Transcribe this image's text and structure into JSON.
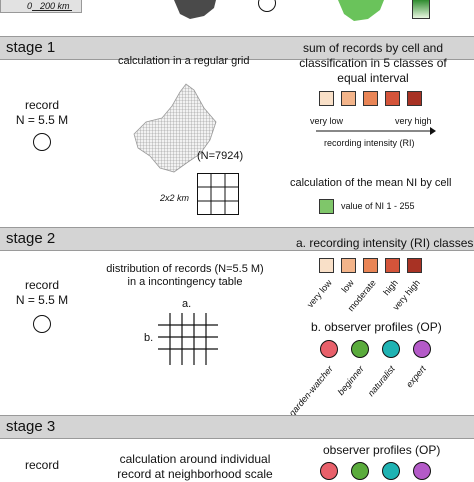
{
  "top": {
    "scale_zero": "0",
    "scale_label": "200 km"
  },
  "stage1": {
    "title": "stage 1",
    "record_label": "record",
    "record_n": "N = 5.5 M",
    "calc_label": "calculation in a regular grid",
    "n_label": "(N=7924)",
    "grid_label": "2x2 km",
    "sum_label_line1": "sum of records by cell and",
    "sum_label_line2": "classification in 5 classes of",
    "sum_label_line3": "equal interval",
    "very_low": "very low",
    "very_high": "very high",
    "ri_label": "recording intensity (RI)",
    "mean_label": "calculation of the mean NI by cell",
    "ni_value_label": "value of NI 1 - 255",
    "class_colors": [
      "#f9e0c8",
      "#f3b48a",
      "#e98556",
      "#d4543a",
      "#a83224"
    ],
    "ni_color": "#7fc66a"
  },
  "stage2": {
    "title": "stage 2",
    "record_label": "record",
    "record_n": "N = 5.5 M",
    "dist_line1": "distribution of records (N=5.5 M)",
    "dist_line2": "in a incontingency table",
    "axis_a": "a.",
    "axis_b": "b.",
    "ri_classes_label": "a. recording intensity (RI) classes",
    "ri_classes": [
      "very low",
      "low",
      "moderate",
      "high",
      "very high"
    ],
    "op_label": "b. observer profiles (OP)",
    "op_profiles": [
      "garden-watcher",
      "beginner",
      "naturalist",
      "expert"
    ],
    "op_colors": [
      "#e8606a",
      "#5aab3c",
      "#1fb3b3",
      "#b45ac8"
    ]
  },
  "stage3": {
    "title": "stage 3",
    "record_label": "record",
    "calc_line1": "calculation around individual",
    "calc_line2": "record at neighborhood scale",
    "op_label": "observer profiles (OP)",
    "op_colors": [
      "#e8606a",
      "#5aab3c",
      "#1fb3b3",
      "#b45ac8"
    ]
  }
}
